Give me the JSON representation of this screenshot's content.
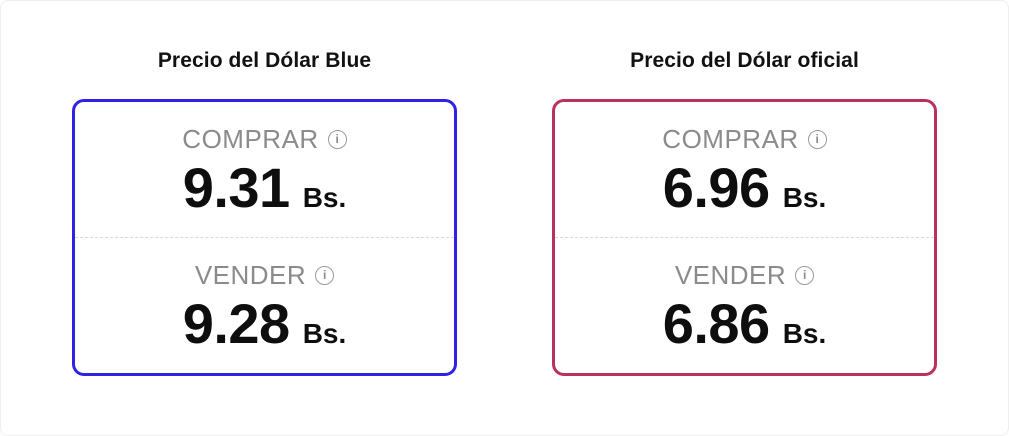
{
  "cards": [
    {
      "title": "Precio del Dólar Blue",
      "accent_color": "#3121e3",
      "rows": [
        {
          "label": "COMPRAR",
          "value": "9.31",
          "currency": "Bs."
        },
        {
          "label": "VENDER",
          "value": "9.28",
          "currency": "Bs."
        }
      ]
    },
    {
      "title": "Precio del Dólar oficial",
      "accent_color": "#ba3061",
      "rows": [
        {
          "label": "COMPRAR",
          "value": "6.96",
          "currency": "Bs."
        },
        {
          "label": "VENDER",
          "value": "6.86",
          "currency": "Bs."
        }
      ]
    }
  ],
  "icons": {
    "info_glyph": "i"
  },
  "colors": {
    "title": "#111111",
    "label": "#8b8b8b",
    "value": "#0e0e0e",
    "divider": "#d9d9d9",
    "background": "#ffffff"
  }
}
